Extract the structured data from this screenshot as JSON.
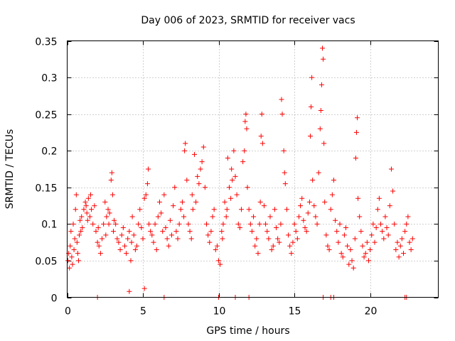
{
  "chart_data": {
    "type": "scatter",
    "title": "Day 006 of 2023, SRMTID for receiver vacs",
    "xlabel": "GPS time / hours",
    "ylabel": "SRMTID / TECUs",
    "xlim": [
      0,
      24.5
    ],
    "ylim": [
      0,
      0.35
    ],
    "xticks": [
      0,
      5,
      10,
      15,
      20
    ],
    "xtick_labels": [
      "0",
      "5",
      "10",
      "15",
      "20"
    ],
    "yticks": [
      0,
      0.05,
      0.1,
      0.15,
      0.2,
      0.25,
      0.3,
      0.35
    ],
    "ytick_labels": [
      "0",
      "0.05",
      "0.1",
      "0.15",
      "0.2",
      "0.25",
      "0.3",
      "0.35"
    ],
    "grid": true,
    "marker": "+",
    "color": "#ff0000",
    "series": [
      {
        "name": "SRMTID",
        "points": [
          [
            0.05,
            0.05
          ],
          [
            0.1,
            0.06
          ],
          [
            0.15,
            0.04
          ],
          [
            0.2,
            0.07
          ],
          [
            0.25,
            0.09
          ],
          [
            0.3,
            0.055
          ],
          [
            0.35,
            0.045
          ],
          [
            0.4,
            0.1
          ],
          [
            0.45,
            0.065
          ],
          [
            0.5,
            0.08
          ],
          [
            0.55,
            0.12
          ],
          [
            0.6,
            0.14
          ],
          [
            0.65,
            0.075
          ],
          [
            0.7,
            0.06
          ],
          [
            0.75,
            0.05
          ],
          [
            0.8,
            0.085
          ],
          [
            0.85,
            0.105
          ],
          [
            0.9,
            0.09
          ],
          [
            0.95,
            0.11
          ],
          [
            1.0,
            0.095
          ],
          [
            1.1,
            0.12
          ],
          [
            1.2,
            0.13
          ],
          [
            1.25,
            0.125
          ],
          [
            1.3,
            0.115
          ],
          [
            1.35,
            0.105
          ],
          [
            1.4,
            0.135
          ],
          [
            1.5,
            0.11
          ],
          [
            1.55,
            0.14
          ],
          [
            1.6,
            0.12
          ],
          [
            1.7,
            0.1
          ],
          [
            1.8,
            0.125
          ],
          [
            1.9,
            0.09
          ],
          [
            2.0,
            0.075
          ],
          [
            2.05,
            0.095
          ],
          [
            2.1,
            0.07
          ],
          [
            2.2,
            0.06
          ],
          [
            2.3,
            0.08
          ],
          [
            2.4,
            0.1
          ],
          [
            2.5,
            0.13
          ],
          [
            2.55,
            0.085
          ],
          [
            2.6,
            0.11
          ],
          [
            2.7,
            0.12
          ],
          [
            2.75,
            0.1
          ],
          [
            2.8,
            0.115
          ],
          [
            2.9,
            0.16
          ],
          [
            2.95,
            0.17
          ],
          [
            3.0,
            0.14
          ],
          [
            3.05,
            0.09
          ],
          [
            3.1,
            0.105
          ],
          [
            3.2,
            0.1
          ],
          [
            3.3,
            0.08
          ],
          [
            3.4,
            0.075
          ],
          [
            3.5,
            0.065
          ],
          [
            3.6,
            0.085
          ],
          [
            3.7,
            0.095
          ],
          [
            3.8,
            0.07
          ],
          [
            3.9,
            0.06
          ],
          [
            4.0,
            0.08
          ],
          [
            4.1,
            0.09
          ],
          [
            4.2,
            0.05
          ],
          [
            4.25,
            0.075
          ],
          [
            4.3,
            0.11
          ],
          [
            4.4,
            0.085
          ],
          [
            4.5,
            0.065
          ],
          [
            4.6,
            0.07
          ],
          [
            4.7,
            0.1
          ],
          [
            4.8,
            0.12
          ],
          [
            4.9,
            0.095
          ],
          [
            5.0,
            0.08
          ],
          [
            5.1,
            0.135
          ],
          [
            5.2,
            0.14
          ],
          [
            5.3,
            0.155
          ],
          [
            5.35,
            0.175
          ],
          [
            5.4,
            0.1
          ],
          [
            5.5,
            0.09
          ],
          [
            5.6,
            0.085
          ],
          [
            5.7,
            0.075
          ],
          [
            5.8,
            0.1
          ],
          [
            5.9,
            0.065
          ],
          [
            6.0,
            0.11
          ],
          [
            6.1,
            0.13
          ],
          [
            6.2,
            0.115
          ],
          [
            6.3,
            0.09
          ],
          [
            6.4,
            0.14
          ],
          [
            6.5,
            0.095
          ],
          [
            6.6,
            0.08
          ],
          [
            6.7,
            0.07
          ],
          [
            6.8,
            0.105
          ],
          [
            6.9,
            0.085
          ],
          [
            7.0,
            0.125
          ],
          [
            7.1,
            0.15
          ],
          [
            7.2,
            0.09
          ],
          [
            7.3,
            0.08
          ],
          [
            7.4,
            0.1
          ],
          [
            7.5,
            0.12
          ],
          [
            7.6,
            0.13
          ],
          [
            7.7,
            0.11
          ],
          [
            7.75,
            0.2
          ],
          [
            7.8,
            0.21
          ],
          [
            7.9,
            0.16
          ],
          [
            8.0,
            0.1
          ],
          [
            8.1,
            0.09
          ],
          [
            8.2,
            0.08
          ],
          [
            8.25,
            0.14
          ],
          [
            8.3,
            0.12
          ],
          [
            8.4,
            0.195
          ],
          [
            8.5,
            0.13
          ],
          [
            8.6,
            0.165
          ],
          [
            8.7,
            0.155
          ],
          [
            8.8,
            0.175
          ],
          [
            8.9,
            0.185
          ],
          [
            9.0,
            0.205
          ],
          [
            9.1,
            0.15
          ],
          [
            9.2,
            0.1
          ],
          [
            9.3,
            0.085
          ],
          [
            9.4,
            0.075
          ],
          [
            9.5,
            0.09
          ],
          [
            9.6,
            0.11
          ],
          [
            9.7,
            0.12
          ],
          [
            9.8,
            0.065
          ],
          [
            9.9,
            0.07
          ],
          [
            10.0,
            0.05
          ],
          [
            10.1,
            0.045
          ],
          [
            10.2,
            0.09
          ],
          [
            10.25,
            0.08
          ],
          [
            10.3,
            0.1
          ],
          [
            10.4,
            0.13
          ],
          [
            10.5,
            0.11
          ],
          [
            10.55,
            0.12
          ],
          [
            10.6,
            0.19
          ],
          [
            10.7,
            0.15
          ],
          [
            10.8,
            0.135
          ],
          [
            10.85,
            0.175
          ],
          [
            10.9,
            0.16
          ],
          [
            11.0,
            0.2
          ],
          [
            11.1,
            0.165
          ],
          [
            11.2,
            0.14
          ],
          [
            11.3,
            0.1
          ],
          [
            11.4,
            0.095
          ],
          [
            11.5,
            0.12
          ],
          [
            11.6,
            0.185
          ],
          [
            11.7,
            0.2
          ],
          [
            11.75,
            0.24
          ],
          [
            11.8,
            0.25
          ],
          [
            11.85,
            0.23
          ],
          [
            11.9,
            0.15
          ],
          [
            12.0,
            0.12
          ],
          [
            12.1,
            0.1
          ],
          [
            12.2,
            0.09
          ],
          [
            12.3,
            0.11
          ],
          [
            12.4,
            0.07
          ],
          [
            12.5,
            0.08
          ],
          [
            12.6,
            0.06
          ],
          [
            12.7,
            0.1
          ],
          [
            12.75,
            0.13
          ],
          [
            12.8,
            0.22
          ],
          [
            12.85,
            0.25
          ],
          [
            12.9,
            0.21
          ],
          [
            13.0,
            0.125
          ],
          [
            13.1,
            0.1
          ],
          [
            13.2,
            0.09
          ],
          [
            13.3,
            0.08
          ],
          [
            13.4,
            0.11
          ],
          [
            13.5,
            0.065
          ],
          [
            13.6,
            0.07
          ],
          [
            13.7,
            0.12
          ],
          [
            13.8,
            0.095
          ],
          [
            13.9,
            0.08
          ],
          [
            14.0,
            0.075
          ],
          [
            14.1,
            0.1
          ],
          [
            14.15,
            0.27
          ],
          [
            14.2,
            0.25
          ],
          [
            14.3,
            0.2
          ],
          [
            14.35,
            0.17
          ],
          [
            14.4,
            0.155
          ],
          [
            14.5,
            0.12
          ],
          [
            14.6,
            0.085
          ],
          [
            14.7,
            0.07
          ],
          [
            14.8,
            0.06
          ],
          [
            14.9,
            0.075
          ],
          [
            15.0,
            0.1
          ],
          [
            15.1,
            0.09
          ],
          [
            15.2,
            0.08
          ],
          [
            15.3,
            0.11
          ],
          [
            15.4,
            0.125
          ],
          [
            15.5,
            0.135
          ],
          [
            15.6,
            0.105
          ],
          [
            15.7,
            0.095
          ],
          [
            15.8,
            0.09
          ],
          [
            15.9,
            0.115
          ],
          [
            16.0,
            0.13
          ],
          [
            16.05,
            0.22
          ],
          [
            16.1,
            0.26
          ],
          [
            16.15,
            0.3
          ],
          [
            16.2,
            0.16
          ],
          [
            16.3,
            0.125
          ],
          [
            16.4,
            0.11
          ],
          [
            16.5,
            0.1
          ],
          [
            16.6,
            0.17
          ],
          [
            16.7,
            0.23
          ],
          [
            16.75,
            0.255
          ],
          [
            16.8,
            0.29
          ],
          [
            16.85,
            0.34
          ],
          [
            16.9,
            0.325
          ],
          [
            16.95,
            0.21
          ],
          [
            17.0,
            0.13
          ],
          [
            17.1,
            0.085
          ],
          [
            17.2,
            0.07
          ],
          [
            17.3,
            0.065
          ],
          [
            17.4,
            0.12
          ],
          [
            17.5,
            0.14
          ],
          [
            17.6,
            0.16
          ],
          [
            17.7,
            0.105
          ],
          [
            17.8,
            0.09
          ],
          [
            17.9,
            0.075
          ],
          [
            18.0,
            0.1
          ],
          [
            18.1,
            0.06
          ],
          [
            18.2,
            0.055
          ],
          [
            18.3,
            0.085
          ],
          [
            18.4,
            0.095
          ],
          [
            18.5,
            0.07
          ],
          [
            18.6,
            0.045
          ],
          [
            18.7,
            0.065
          ],
          [
            18.8,
            0.05
          ],
          [
            18.9,
            0.04
          ],
          [
            19.0,
            0.08
          ],
          [
            19.05,
            0.19
          ],
          [
            19.1,
            0.225
          ],
          [
            19.15,
            0.245
          ],
          [
            19.2,
            0.135
          ],
          [
            19.3,
            0.11
          ],
          [
            19.4,
            0.09
          ],
          [
            19.5,
            0.07
          ],
          [
            19.6,
            0.055
          ],
          [
            19.7,
            0.06
          ],
          [
            19.8,
            0.075
          ],
          [
            19.9,
            0.05
          ],
          [
            20.0,
            0.065
          ],
          [
            20.1,
            0.085
          ],
          [
            20.2,
            0.1
          ],
          [
            20.3,
            0.075
          ],
          [
            20.4,
            0.095
          ],
          [
            20.5,
            0.12
          ],
          [
            20.6,
            0.135
          ],
          [
            20.7,
            0.1
          ],
          [
            20.8,
            0.09
          ],
          [
            20.9,
            0.08
          ],
          [
            21.0,
            0.11
          ],
          [
            21.1,
            0.095
          ],
          [
            21.2,
            0.085
          ],
          [
            21.3,
            0.125
          ],
          [
            21.4,
            0.175
          ],
          [
            21.5,
            0.145
          ],
          [
            21.6,
            0.1
          ],
          [
            21.7,
            0.065
          ],
          [
            21.8,
            0.075
          ],
          [
            21.9,
            0.055
          ],
          [
            22.0,
            0.07
          ],
          [
            22.1,
            0.08
          ],
          [
            22.2,
            0.06
          ],
          [
            22.3,
            0.09
          ],
          [
            22.4,
            0.1
          ],
          [
            22.5,
            0.11
          ],
          [
            22.6,
            0.075
          ],
          [
            22.7,
            0.065
          ],
          [
            22.8,
            0.08
          ],
          [
            2.0,
            0
          ],
          [
            6.4,
            0
          ],
          [
            10.0,
            0
          ],
          [
            11.1,
            0
          ],
          [
            12.0,
            0
          ],
          [
            16.9,
            0
          ],
          [
            17.4,
            0
          ],
          [
            17.6,
            0
          ],
          [
            22.3,
            0
          ],
          [
            22.4,
            0
          ],
          [
            4.1,
            0.008
          ],
          [
            5.1,
            0.012
          ]
        ]
      }
    ]
  }
}
